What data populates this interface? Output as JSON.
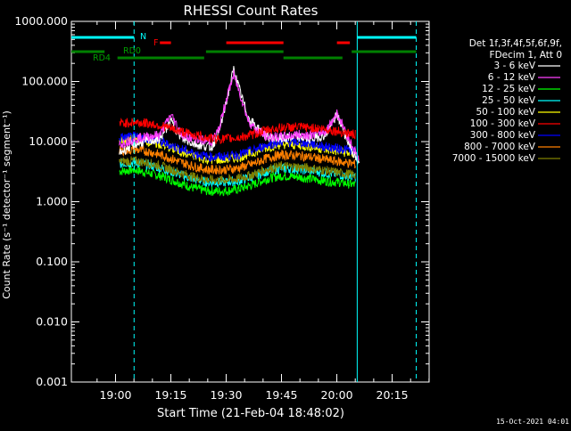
{
  "chart_data": {
    "type": "line",
    "title": "RHESSI Count Rates",
    "xlabel": "Start Time (21-Feb-04 18:48:02)",
    "ylabel": "Count Rate (s⁻¹ detector⁻¹ segment⁻¹)",
    "yscale": "log",
    "ylim": [
      0.001,
      1000
    ],
    "xlim_minutes_after_start": [
      0,
      97
    ],
    "y_tick_labels": [
      "0.001",
      "0.010",
      "0.100",
      "1.000",
      "10.000",
      "100.000",
      "1000.000"
    ],
    "x_tick_labels": [
      "19:00",
      "19:15",
      "19:30",
      "19:45",
      "20:00",
      "20:15"
    ],
    "x_tick_minutes_after_start": [
      11.97,
      26.97,
      41.97,
      56.97,
      71.97,
      86.97
    ],
    "legend_header": [
      "Det 1f,3f,4f,5f,6f,9f,",
      "FDecim 1, Att 0"
    ],
    "legend_position": "right",
    "series": [
      {
        "name": "3 - 6 keV",
        "color": "#ffffff",
        "x": [
          13,
          17,
          20,
          24,
          27,
          30,
          34,
          38,
          40,
          42,
          44,
          46,
          48,
          50,
          53,
          57,
          61,
          65,
          69,
          72,
          75,
          78
        ],
        "y": [
          6.5,
          9.0,
          10.0,
          11.0,
          22.0,
          11.0,
          9.0,
          8.0,
          14.0,
          45.0,
          160.0,
          60.0,
          25.0,
          18.0,
          12.0,
          11.0,
          12.0,
          11.0,
          13.0,
          28.0,
          10.0,
          4.0
        ]
      },
      {
        "name": "6 - 12 keV",
        "color": "#ff40ff",
        "x": [
          13,
          17,
          20,
          24,
          27,
          30,
          34,
          38,
          40,
          42,
          44,
          46,
          48,
          50,
          53,
          57,
          61,
          65,
          69,
          72,
          75,
          78
        ],
        "y": [
          9.0,
          11.0,
          12.0,
          13.0,
          28.0,
          13.0,
          11.0,
          10.0,
          16.0,
          50.0,
          130.0,
          55.0,
          22.0,
          16.0,
          12.0,
          12.0,
          13.0,
          13.0,
          15.0,
          30.0,
          12.0,
          5.0
        ]
      },
      {
        "name": "12 - 25 keV",
        "color": "#00ff00",
        "x": [
          13,
          17,
          21,
          25,
          29,
          33,
          37,
          41,
          45,
          49,
          53,
          57,
          61,
          65,
          69,
          73,
          77
        ],
        "y": [
          3.2,
          3.4,
          3.0,
          2.6,
          2.1,
          1.7,
          1.5,
          1.5,
          1.6,
          1.9,
          2.4,
          2.7,
          2.6,
          2.4,
          2.2,
          2.1,
          1.9
        ]
      },
      {
        "name": "25 - 50 keV",
        "color": "#00ffff",
        "x": [
          13,
          17,
          21,
          25,
          29,
          33,
          37,
          41,
          45,
          49,
          53,
          57,
          61,
          65,
          69,
          73,
          77
        ],
        "y": [
          4.3,
          4.5,
          4.1,
          3.5,
          2.9,
          2.4,
          2.1,
          2.1,
          2.2,
          2.6,
          3.2,
          3.6,
          3.5,
          3.3,
          3.0,
          2.8,
          2.6
        ]
      },
      {
        "name": "50 - 100 keV",
        "color": "#ffff00",
        "x": [
          13,
          17,
          21,
          25,
          29,
          33,
          37,
          41,
          45,
          49,
          53,
          57,
          61,
          65,
          69,
          73,
          77
        ],
        "y": [
          10.5,
          11.0,
          10.0,
          8.6,
          7.0,
          5.8,
          5.0,
          5.0,
          5.4,
          6.4,
          8.0,
          9.0,
          8.8,
          8.2,
          7.4,
          6.8,
          6.2
        ]
      },
      {
        "name": "100 - 300 keV",
        "color": "#ff0000",
        "x": [
          13,
          17,
          21,
          25,
          29,
          33,
          37,
          41,
          45,
          49,
          53,
          57,
          61,
          65,
          69,
          73,
          77
        ],
        "y": [
          20.0,
          21.0,
          20.0,
          18.0,
          15.0,
          13.0,
          11.5,
          11.0,
          11.5,
          13.0,
          15.5,
          17.0,
          17.5,
          17.0,
          16.0,
          14.5,
          13.0
        ]
      },
      {
        "name": "300 - 800 keV",
        "color": "#0000ff",
        "x": [
          13,
          17,
          21,
          25,
          29,
          33,
          37,
          41,
          45,
          49,
          53,
          57,
          61,
          65,
          69,
          73,
          77
        ],
        "y": [
          11.5,
          12.0,
          11.0,
          9.5,
          7.8,
          6.4,
          5.6,
          5.6,
          6.0,
          7.0,
          8.8,
          10.0,
          9.8,
          9.2,
          8.2,
          7.6,
          7.0
        ]
      },
      {
        "name": "800 - 7000 keV",
        "color": "#ff8000",
        "x": [
          13,
          17,
          21,
          25,
          29,
          33,
          37,
          41,
          45,
          49,
          53,
          57,
          61,
          65,
          69,
          73,
          77
        ],
        "y": [
          7.0,
          7.4,
          6.8,
          5.8,
          4.7,
          3.9,
          3.4,
          3.4,
          3.6,
          4.2,
          5.3,
          6.0,
          5.9,
          5.5,
          5.0,
          4.6,
          4.2
        ]
      },
      {
        "name": "7000 - 15000 keV",
        "color": "#808000",
        "x": [
          13,
          17,
          21,
          25,
          29,
          33,
          37,
          41,
          45,
          49,
          53,
          57,
          61,
          65,
          69,
          73,
          77
        ],
        "y": [
          4.6,
          4.8,
          4.4,
          3.8,
          3.1,
          2.6,
          2.3,
          2.3,
          2.4,
          2.8,
          3.5,
          3.9,
          3.8,
          3.6,
          3.3,
          3.0,
          2.8
        ]
      }
    ],
    "flag_bars": [
      {
        "label": "N",
        "color": "#00ffff",
        "level": 1,
        "segments": [
          [
            0,
            17
          ],
          [
            77.5,
            93.5
          ]
        ]
      },
      {
        "label": "F",
        "color": "#ff0000",
        "level": 2,
        "segments": [
          [
            24,
            27
          ],
          [
            42,
            57.5
          ],
          [
            72,
            75.5
          ]
        ]
      },
      {
        "label": "RD0",
        "color": "#008000",
        "level": 3,
        "segments": [
          [
            0,
            9
          ],
          [
            36.5,
            57.5
          ],
          [
            76,
            93.5
          ]
        ]
      },
      {
        "label": "RD4",
        "color": "#008000",
        "level": 4,
        "segments": [
          [
            12.5,
            36
          ],
          [
            57.5,
            73.5
          ]
        ]
      }
    ],
    "vertical_markers": [
      {
        "minutes_after_start": 17.0,
        "style": "dashed",
        "color": "#00ffff"
      },
      {
        "minutes_after_start": 77.5,
        "style": "solid",
        "color": "#00ffff"
      },
      {
        "minutes_after_start": 93.5,
        "style": "dashed",
        "color": "#00ffff"
      }
    ],
    "grid": false,
    "footer_timestamp": "15-Oct-2021 04:01"
  }
}
